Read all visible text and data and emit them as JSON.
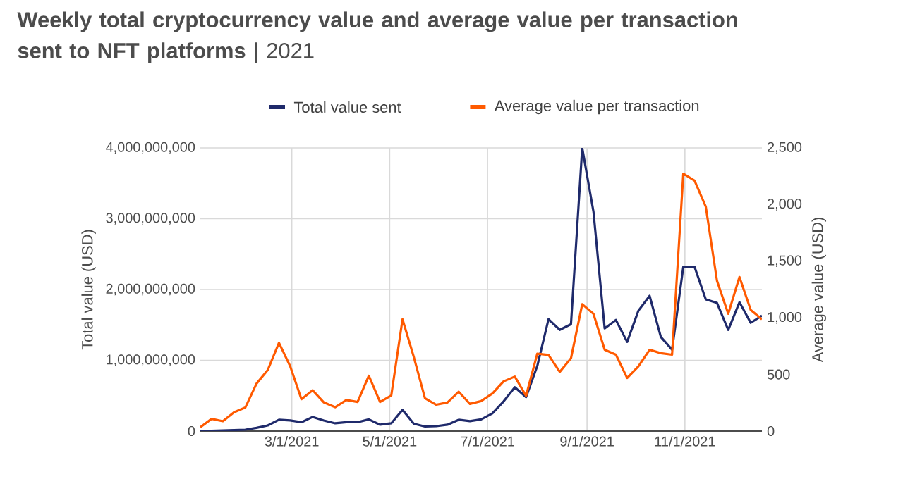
{
  "chart_data": {
    "type": "line",
    "title": "**Weekly total cryptocurrency value and average value per transaction sent to NFT platforms** | 2021",
    "ylabel": "Total value (USD)",
    "y2label": "Average value (USD)",
    "x": [
      "2021-01-03",
      "2021-01-10",
      "2021-01-17",
      "2021-01-24",
      "2021-01-31",
      "2021-02-07",
      "2021-02-14",
      "2021-02-21",
      "2021-02-28",
      "2021-03-07",
      "2021-03-14",
      "2021-03-21",
      "2021-03-28",
      "2021-04-04",
      "2021-04-11",
      "2021-04-18",
      "2021-04-25",
      "2021-05-02",
      "2021-05-09",
      "2021-05-16",
      "2021-05-23",
      "2021-05-30",
      "2021-06-06",
      "2021-06-13",
      "2021-06-20",
      "2021-06-27",
      "2021-07-04",
      "2021-07-11",
      "2021-07-18",
      "2021-07-25",
      "2021-08-01",
      "2021-08-08",
      "2021-08-15",
      "2021-08-22",
      "2021-08-29",
      "2021-09-05",
      "2021-09-12",
      "2021-09-19",
      "2021-09-26",
      "2021-10-03",
      "2021-10-10",
      "2021-10-17",
      "2021-10-24",
      "2021-10-31",
      "2021-11-07",
      "2021-11-14",
      "2021-11-21",
      "2021-11-28",
      "2021-12-05",
      "2021-12-12",
      "2021-12-19"
    ],
    "series": [
      {
        "name": "Total value sent",
        "color": "#1f2a6b",
        "values": [
          0,
          5000000,
          10000000,
          15000000,
          20000000,
          46000000,
          80000000,
          160000000,
          150000000,
          125000000,
          200000000,
          150000000,
          110000000,
          125000000,
          125000000,
          165000000,
          90000000,
          110000000,
          300000000,
          105000000,
          65000000,
          70000000,
          90000000,
          160000000,
          140000000,
          165000000,
          250000000,
          420000000,
          620000000,
          480000000,
          920000000,
          1580000000,
          1430000000,
          1510000000,
          4000000000,
          3100000000,
          1450000000,
          1570000000,
          1260000000,
          1700000000,
          1910000000,
          1330000000,
          1150000000,
          2320000000,
          2320000000,
          1860000000,
          1810000000,
          1430000000,
          1820000000,
          1530000000,
          1630000000
        ]
      },
      {
        "name": "Average value per transaction",
        "color": "#ff5a00",
        "axis": "y2",
        "values": [
          34,
          108,
          87,
          166,
          208,
          419,
          539,
          780,
          572,
          282,
          361,
          253,
          211,
          274,
          257,
          489,
          257,
          315,
          987,
          656,
          290,
          233,
          253,
          348,
          240,
          265,
          332,
          439,
          481,
          311,
          684,
          672,
          523,
          643,
          1120,
          1036,
          718,
          675,
          469,
          572,
          718,
          688,
          675,
          2273,
          2211,
          1982,
          1327,
          1036,
          1360,
          1070,
          987
        ]
      }
    ],
    "xlim": [
      "2021-01-03",
      "2021-12-19"
    ],
    "xticks": [
      {
        "value": "2021-03-01",
        "label": "3/1/2021"
      },
      {
        "value": "2021-05-01",
        "label": "5/1/2021"
      },
      {
        "value": "2021-07-01",
        "label": "7/1/2021"
      },
      {
        "value": "2021-09-01",
        "label": "9/1/2021"
      },
      {
        "value": "2021-11-01",
        "label": "11/1/2021"
      }
    ],
    "ylim": [
      0,
      4000000000
    ],
    "yticks": [
      0,
      {
        "value": 1000000000,
        "label": "1,000,000,000"
      },
      {
        "value": 2000000000,
        "label": "2,000,000,000"
      },
      {
        "value": 3000000000,
        "label": "3,000,000,000"
      },
      {
        "value": 4000000000,
        "label": "4,000,000,000"
      }
    ],
    "y2lim": [
      0,
      2500
    ],
    "y2ticks": [
      0,
      500,
      {
        "value": 1000,
        "label": "1,000"
      },
      {
        "value": 1500,
        "label": "1,500"
      },
      {
        "value": 2000,
        "label": "2,000"
      },
      {
        "value": 2500,
        "label": "2,500"
      }
    ],
    "grid": true,
    "legend": "top",
    "marker": "none",
    "line_style": "solid"
  }
}
